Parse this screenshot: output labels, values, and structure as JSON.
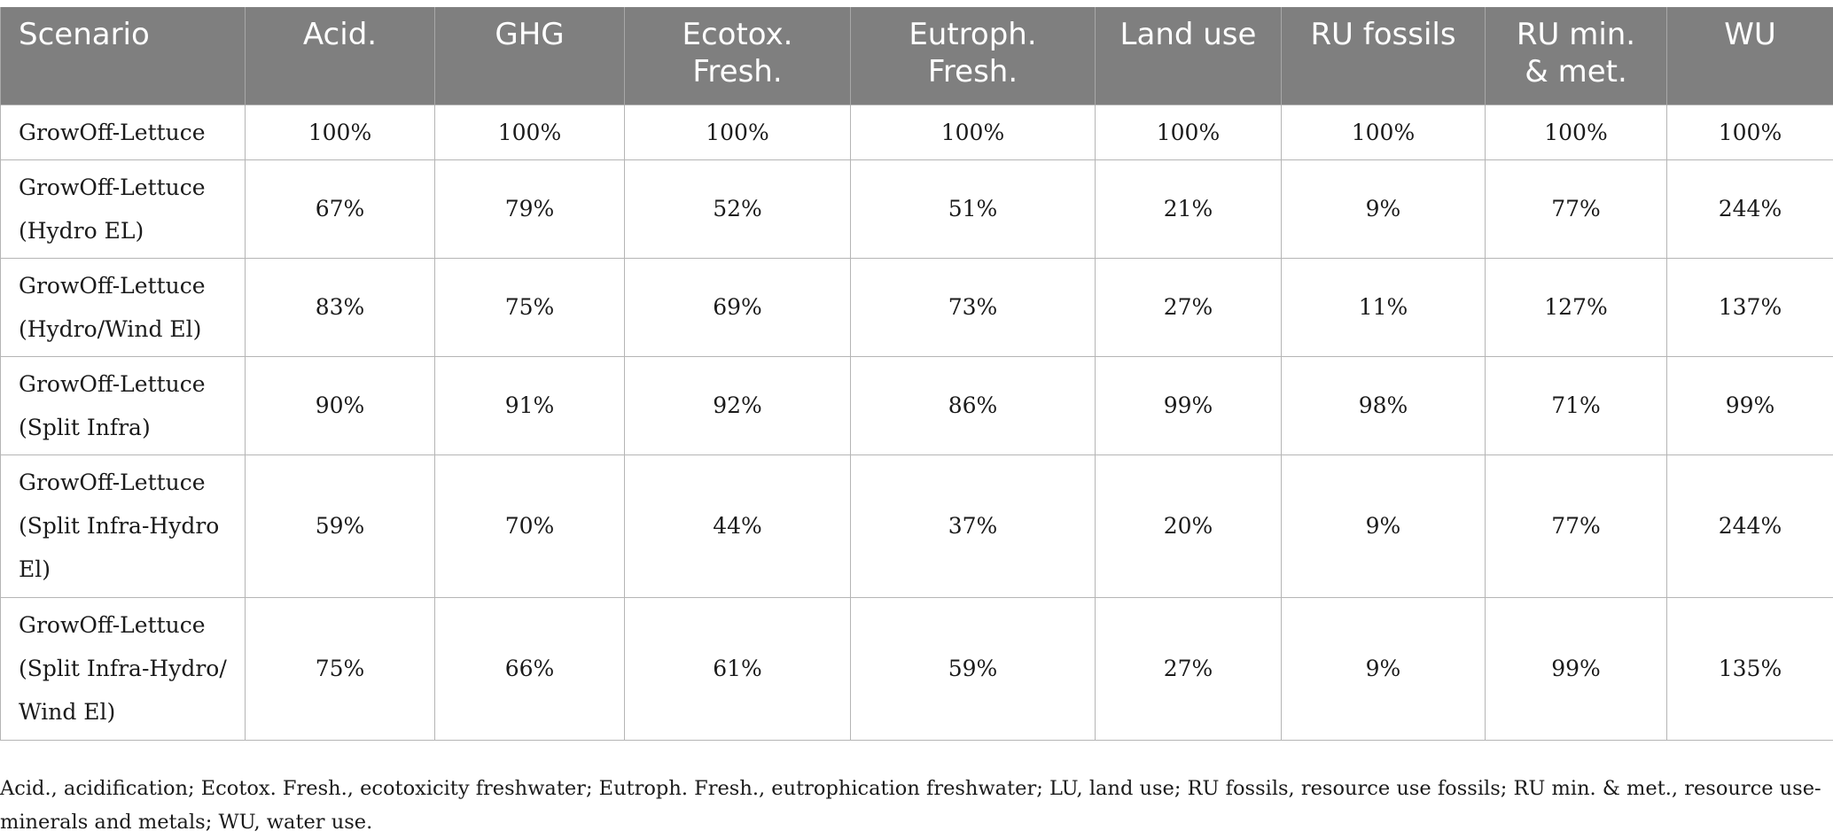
{
  "table": {
    "headers": [
      "Scenario",
      "Acid.",
      "GHG",
      "Ecotox.\nFresh.",
      "Eutroph.\nFresh.",
      "Land use",
      "RU fossils",
      "RU min.\n& met.",
      "WU"
    ],
    "rows": [
      {
        "scenario": "GrowOff-Lettuce",
        "values": [
          "100%",
          "100%",
          "100%",
          "100%",
          "100%",
          "100%",
          "100%",
          "100%"
        ]
      },
      {
        "scenario": "GrowOff-Lettuce\n(Hydro EL)",
        "values": [
          "67%",
          "79%",
          "52%",
          "51%",
          "21%",
          "9%",
          "77%",
          "244%"
        ]
      },
      {
        "scenario": "GrowOff-Lettuce\n(Hydro/Wind El)",
        "values": [
          "83%",
          "75%",
          "69%",
          "73%",
          "27%",
          "11%",
          "127%",
          "137%"
        ]
      },
      {
        "scenario": "GrowOff-Lettuce\n(Split Infra)",
        "values": [
          "90%",
          "91%",
          "92%",
          "86%",
          "99%",
          "98%",
          "71%",
          "99%"
        ]
      },
      {
        "scenario": "GrowOff-Lettuce\n(Split Infra-Hydro\nEl)",
        "values": [
          "59%",
          "70%",
          "44%",
          "37%",
          "20%",
          "9%",
          "77%",
          "244%"
        ]
      },
      {
        "scenario": "GrowOff-Lettuce\n(Split Infra-Hydro/\nWind El)",
        "values": [
          "75%",
          "66%",
          "61%",
          "59%",
          "27%",
          "9%",
          "99%",
          "135%"
        ]
      }
    ]
  },
  "footnote": "Acid., acidification; Ecotox. Fresh., ecotoxicity freshwater; Eutroph. Fresh., eutrophication freshwater; LU, land use; RU fossils, resource use fossils; RU min. & met., resource use-minerals and metals; WU, water use.",
  "colors": {
    "header_background": "#7f7f7f",
    "header_text": "#ffffff",
    "grid": "#b5b5b5"
  }
}
